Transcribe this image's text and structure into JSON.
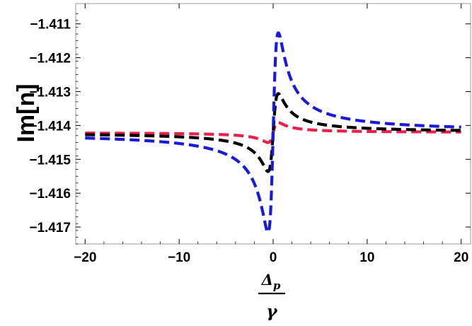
{
  "chart_data": {
    "type": "line",
    "title": "",
    "ylabel": "Im[n]",
    "xlabel": {
      "numerator": "Δ",
      "numerator_sub": "p",
      "denominator": "γ"
    },
    "xlim": [
      -21,
      21
    ],
    "ylim": [
      -1.4175,
      -1.4104
    ],
    "x_ticks": [
      -20,
      -10,
      0,
      10,
      20
    ],
    "x_tick_labels": [
      "−20",
      "−10",
      "0",
      "10",
      "20"
    ],
    "y_ticks": [
      -1.417,
      -1.416,
      -1.415,
      -1.414,
      -1.413,
      -1.412,
      -1.411
    ],
    "y_tick_labels": [
      "−1.417",
      "−1.416",
      "−1.415",
      "−1.414",
      "−1.413",
      "−1.412",
      "−1.411"
    ],
    "grid": false,
    "legend": "none",
    "line_style": "dashed",
    "baseline": -1.41421,
    "series": [
      {
        "color": "#1a1adb",
        "amplitude": 0.0032,
        "width": 0.55,
        "peak_x": 0.45,
        "dip_x": -0.45
      },
      {
        "color": "#000000",
        "amplitude": 0.00125,
        "width": 0.55,
        "peak_x": 0.45,
        "dip_x": -0.45
      },
      {
        "color": "#e8204a",
        "amplitude": 0.00032,
        "width": 0.55,
        "peak_x": 0.45,
        "dip_x": -0.45
      }
    ]
  }
}
